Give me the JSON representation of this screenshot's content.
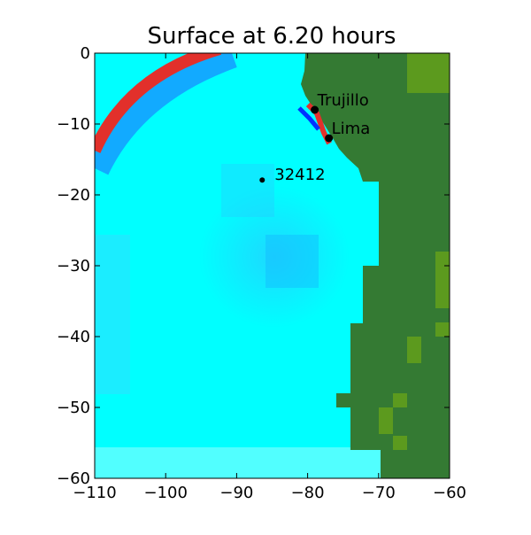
{
  "figure": {
    "title": "Surface at 6.20 hours"
  },
  "axes": {
    "x_ticks": [
      "−110",
      "−100",
      "−90",
      "−80",
      "−70",
      "−60"
    ],
    "y_ticks": [
      "0",
      "−10",
      "−20",
      "−30",
      "−40",
      "−50",
      "−60"
    ],
    "x_range": [
      -110,
      -60
    ],
    "y_range": [
      -60,
      0
    ]
  },
  "markers": [
    {
      "label": "Trujillo",
      "lon": -79.0,
      "lat": -8.0
    },
    {
      "label": "Lima",
      "lon": -77.0,
      "lat": -12.0
    },
    {
      "label": "32412",
      "lon": -86.4,
      "lat": -17.9
    }
  ],
  "colors": {
    "ocean": "#00ffff",
    "land": "#347a33",
    "land_light": "#5c9a1e",
    "wave_positive": "#e2302b",
    "wave_negative": "#0a8bff"
  }
}
